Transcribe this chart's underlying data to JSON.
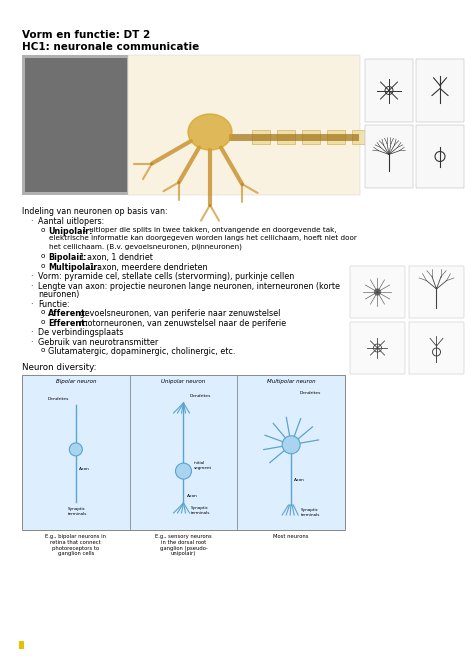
{
  "bg_color": "#ffffff",
  "title_line1": "Vorm en functie: DT 2",
  "title_line2": "HC1: neuronale communicatie",
  "title_fontsize": 7.5,
  "body_fontsize": 5.8,
  "small_fontsize": 5.2,
  "section1_header": "Indeling van neuronen op basis van:",
  "bullet1": "Aantal uitlopers:",
  "sub1a_bold": "Unipolair:",
  "sub1a_rest": " 1 uitloper die splits in twee takken, ontvangende en doorgevende tak,",
  "sub1a_line2": "elektrische informatie kan doorgegeven worden langs het cellichaam, hoeft niet door",
  "sub1a_line3": "het cellichaam. (B.v. gevoelsneuronen, pijnneuronen)",
  "sub1b_bold": "Bipolair:",
  "sub1b_rest": " 1 axon, 1 dendriet",
  "sub1c_bold": "Multipolair:",
  "sub1c_rest": " 1 axon, meerdere dendrieten",
  "bullet2": "Vorm: pyramide cel, stellate cells (stervorming), purkinje cellen",
  "bullet3a": "Lengte van axon: projectie neuronen lange neuronen, interneuronen (korte",
  "bullet3b": "neuronen)",
  "bullet4": "Functie:",
  "sub4a_bold": "Afferent:",
  "sub4a_rest": " gevoelsneuronen, van periferie naar zenuwstelsel",
  "sub4b_bold": "Efferent:",
  "sub4b_rest": " motorneuronen, van zenuwstelsel naar de periferie",
  "bullet5": "De verbindingsplaats",
  "bullet6": "Gebruik van neurotransmitter",
  "sub6a": "Glutamatergic, dopaminergic, cholinergic, etc.",
  "section2_header": "Neuron diversity:",
  "col_label1": "Bipolar neuron",
  "col_label2": "Unipolar neuron",
  "col_label3": "Multipolar neuron",
  "cap1": "E.g., bipolar neurons in\nretina that connect\nphotoreceptors to\nganglion cells",
  "cap2": "E.g., sensory neurons\nin the dorsal root\nganglion (pseudo-\nunipolair)",
  "cap3": "Most neurons",
  "marker_color": "#e8c000",
  "blue_neuron": "#5ba3d0",
  "blue_light": "#a8d4f0",
  "blue_dark": "#2a6090",
  "neuron_box_color": "#ddeeff",
  "neuron_box_edge": "#888888"
}
